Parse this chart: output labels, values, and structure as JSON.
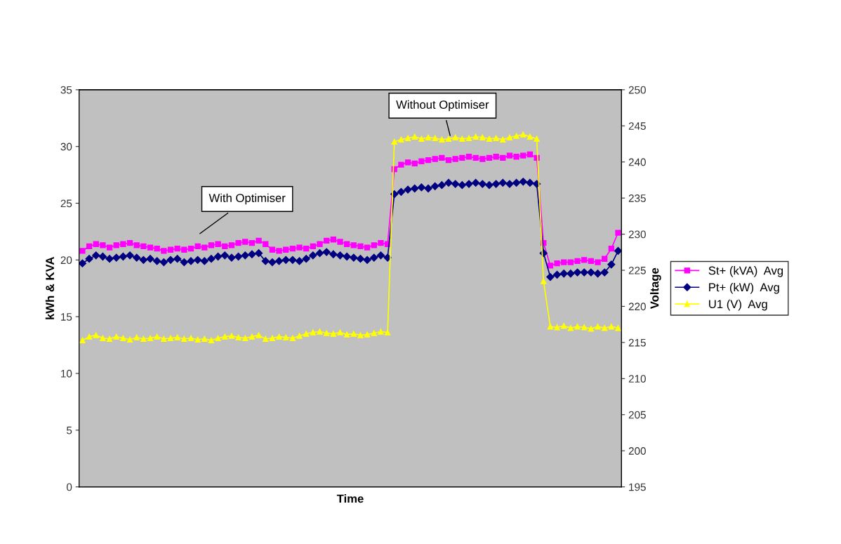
{
  "chart_data": {
    "type": "line",
    "xlabel": "Time",
    "ylabel": "kWh & KVA",
    "y2label": "Voltage",
    "categories": [
      null,
      null,
      null,
      null,
      null,
      null,
      null,
      null,
      null,
      null,
      null,
      null,
      null,
      null,
      null,
      null,
      null,
      null,
      null,
      null,
      null,
      null,
      null,
      null,
      null,
      null,
      null,
      null,
      null,
      null,
      null,
      null,
      null,
      null,
      null,
      null,
      null,
      null,
      null,
      null,
      null,
      null,
      null,
      null,
      null,
      null,
      null,
      null,
      null,
      null,
      null,
      null,
      null,
      null,
      null,
      null,
      null,
      null,
      null,
      null,
      null,
      null,
      null,
      null,
      null,
      null,
      null,
      null,
      null,
      null,
      null,
      null,
      null,
      null,
      null,
      null,
      null,
      null,
      null,
      null
    ],
    "ylim": [
      0,
      35
    ],
    "yticks": [
      0,
      5,
      10,
      15,
      20,
      25,
      30,
      35
    ],
    "y2lim": [
      195,
      250
    ],
    "y2ticks": [
      195,
      200,
      205,
      210,
      215,
      220,
      225,
      230,
      235,
      240,
      245,
      250
    ],
    "grid": false,
    "legend": "right",
    "annotations": [
      "With Optimiser",
      "Without Optimiser"
    ],
    "series": [
      {
        "name": "St+ (kVA)  Avg",
        "color": "#ff00ff",
        "marker": "square",
        "values": [
          20.8,
          21.2,
          21.4,
          21.3,
          21.1,
          21.3,
          21.4,
          21.5,
          21.3,
          21.2,
          21.1,
          21.0,
          20.8,
          20.9,
          21.0,
          20.9,
          21.0,
          21.2,
          21.1,
          21.3,
          21.4,
          21.2,
          21.3,
          21.5,
          21.6,
          21.5,
          21.7,
          21.4,
          20.9,
          20.8,
          20.9,
          21.0,
          21.1,
          21.0,
          21.2,
          21.4,
          21.7,
          21.8,
          21.6,
          21.4,
          21.3,
          21.2,
          21.1,
          21.3,
          21.5,
          21.4,
          28.0,
          28.4,
          28.6,
          28.5,
          28.7,
          28.8,
          28.9,
          29.0,
          28.8,
          28.9,
          29.0,
          29.1,
          29.0,
          28.9,
          29.0,
          29.1,
          29.0,
          29.2,
          29.1,
          29.2,
          29.3,
          29.0,
          21.5,
          19.5,
          19.7,
          19.8,
          19.8,
          19.9,
          20.0,
          19.9,
          19.8,
          20.1,
          21.0,
          22.4
        ]
      },
      {
        "name": "Pt+ (kW)  Avg",
        "color": "#000080",
        "marker": "diamond",
        "values": [
          19.7,
          20.1,
          20.4,
          20.3,
          20.1,
          20.2,
          20.3,
          20.4,
          20.2,
          20.0,
          20.1,
          19.9,
          19.8,
          20.0,
          20.1,
          19.8,
          19.9,
          20.0,
          19.9,
          20.1,
          20.3,
          20.4,
          20.2,
          20.3,
          20.4,
          20.5,
          20.6,
          19.9,
          19.8,
          19.9,
          20.0,
          20.0,
          19.9,
          20.1,
          20.4,
          20.6,
          20.7,
          20.5,
          20.4,
          20.3,
          20.2,
          20.1,
          20.0,
          20.2,
          20.4,
          20.2,
          25.8,
          26.0,
          26.2,
          26.3,
          26.4,
          26.3,
          26.5,
          26.6,
          26.8,
          26.7,
          26.6,
          26.7,
          26.8,
          26.7,
          26.6,
          26.7,
          26.8,
          26.7,
          26.8,
          26.9,
          26.8,
          26.7,
          20.6,
          18.5,
          18.7,
          18.8,
          18.8,
          18.9,
          18.9,
          18.9,
          18.8,
          18.9,
          19.6,
          20.8
        ]
      },
      {
        "name": "U1 (V)  Avg",
        "color": "#ffff00",
        "marker": "triangle",
        "axis": "y2",
        "values": [
          215.3,
          215.8,
          216.0,
          215.6,
          215.5,
          215.8,
          215.6,
          215.4,
          215.7,
          215.5,
          215.6,
          215.8,
          215.5,
          215.6,
          215.7,
          215.5,
          215.6,
          215.4,
          215.5,
          215.3,
          215.6,
          215.8,
          215.9,
          215.7,
          215.6,
          215.8,
          216.0,
          215.5,
          215.6,
          215.8,
          215.7,
          215.6,
          215.9,
          216.2,
          216.4,
          216.5,
          216.3,
          216.2,
          216.4,
          216.1,
          216.2,
          216.0,
          216.1,
          216.3,
          216.5,
          216.4,
          242.8,
          243.1,
          243.3,
          243.5,
          243.2,
          243.4,
          243.3,
          243.1,
          243.2,
          243.4,
          243.2,
          243.3,
          243.5,
          243.4,
          243.2,
          243.3,
          243.1,
          243.4,
          243.6,
          243.8,
          243.5,
          243.2,
          223.5,
          217.2,
          217.1,
          217.3,
          217.0,
          217.2,
          217.1,
          216.9,
          217.2,
          217.0,
          217.2,
          217.0
        ]
      }
    ]
  }
}
